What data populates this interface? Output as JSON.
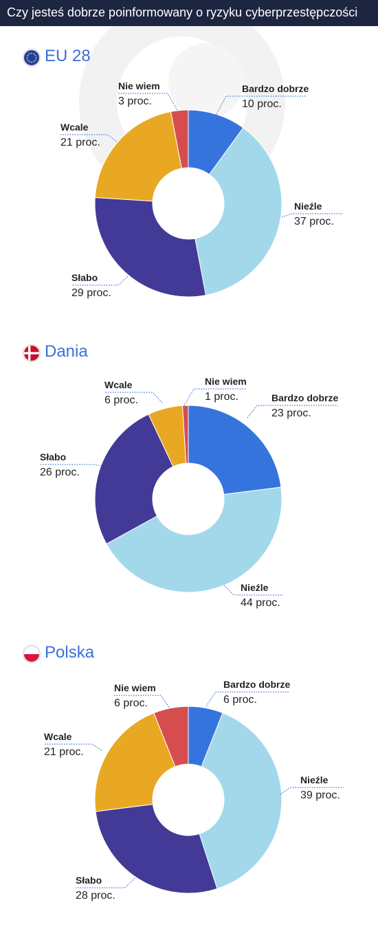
{
  "title": "Czy jesteś dobrze poinformowany o ryzyku cyberprzestępczości",
  "colors": {
    "Bardzo dobrze": "#3674dd",
    "Nieźle": "#a3d8ea",
    "Słabo": "#423a96",
    "Wcale": "#e9a823",
    "Nie wiem": "#d64d4f"
  },
  "chart_data": [
    {
      "type": "pie",
      "title": "EU 28",
      "flag": "eu-flag-icon",
      "categories": [
        "Bardzo dobrze",
        "Nieźle",
        "Słabo",
        "Wcale",
        "Nie wiem"
      ],
      "values": [
        10,
        37,
        29,
        21,
        3
      ],
      "labels": [
        "10 proc.",
        "37 proc.",
        "29 proc.",
        "21 proc.",
        "3 proc."
      ]
    },
    {
      "type": "pie",
      "title": "Dania",
      "flag": "denmark-flag-icon",
      "categories": [
        "Bardzo dobrze",
        "Nieźle",
        "Słabo",
        "Wcale",
        "Nie wiem"
      ],
      "values": [
        23,
        44,
        26,
        6,
        1
      ],
      "labels": [
        "23 proc.",
        "44 proc.",
        "26 proc.",
        "6 proc.",
        "1 proc."
      ]
    },
    {
      "type": "pie",
      "title": "Polska",
      "flag": "poland-flag-icon",
      "categories": [
        "Bardzo dobrze",
        "Nieźle",
        "Słabo",
        "Wcale",
        "Nie wiem"
      ],
      "values": [
        6,
        39,
        28,
        21,
        6
      ],
      "labels": [
        "6 proc.",
        "39 proc.",
        "28 proc.",
        "21 proc.",
        "6 proc."
      ]
    }
  ]
}
